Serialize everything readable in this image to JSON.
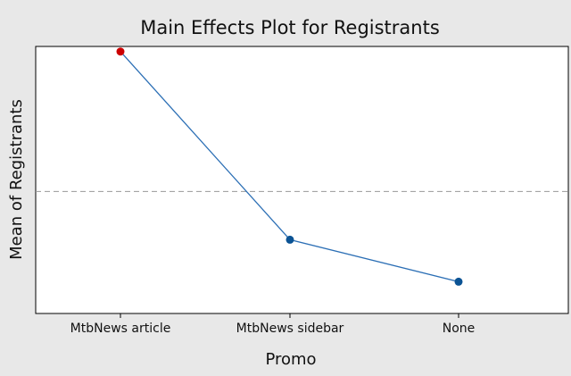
{
  "chart_data": {
    "type": "line",
    "title": "Main Effects Plot for Registrants",
    "xlabel": "Promo",
    "ylabel": "Mean of Registrants",
    "categories": [
      "MtbNews article",
      "MtbNews sidebar",
      "None"
    ],
    "series": [
      {
        "values": [
          1.0,
          0.26,
          0.095
        ]
      }
    ],
    "ylim": [
      -0.03,
      1.02
    ],
    "reference_line": {
      "value": 0.45,
      "style": "dashed"
    },
    "grid": false,
    "y_tick_labels_shown": false,
    "colors": {
      "line": "#2c6fb5",
      "marker": "#0b5394",
      "highlight_marker": "#cc0000",
      "reference": "#999999",
      "plot_background": "#ffffff",
      "figure_background": "#e8e8e8"
    }
  }
}
